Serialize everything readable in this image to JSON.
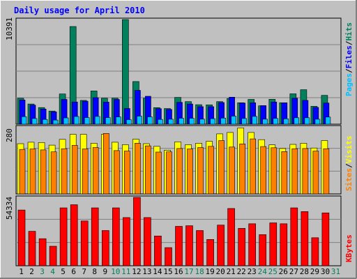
{
  "chart_data": [
    {
      "type": "bar",
      "title": "Daily usage for April 2010",
      "ylabel_max": "10391",
      "ylim": [
        0,
        10391
      ],
      "categories": [
        "1",
        "2",
        "3",
        "4",
        "5",
        "6",
        "7",
        "8",
        "9",
        "10",
        "11",
        "12",
        "13",
        "14",
        "15",
        "16",
        "17",
        "18",
        "19",
        "20",
        "21",
        "22",
        "23",
        "24",
        "25",
        "26",
        "27",
        "28",
        "29",
        "30",
        "31"
      ],
      "legend": [
        "Pages",
        "Files",
        "Hits"
      ],
      "series": [
        {
          "name": "Hits",
          "values": [
            2570,
            2000,
            1650,
            1300,
            3000,
            9700,
            2360,
            3300,
            2580,
            2580,
            10391,
            4230,
            2580,
            1640,
            1550,
            2660,
            2240,
            1930,
            1920,
            2240,
            2550,
            2130,
            2460,
            1820,
            2470,
            2130,
            3010,
            3420,
            1770,
            2860,
            0
          ]
        },
        {
          "name": "Files",
          "values": [
            2400,
            1890,
            1500,
            1220,
            2460,
            2200,
            2280,
            2630,
            2190,
            2450,
            1560,
            3360,
            2770,
            1540,
            1460,
            2170,
            2000,
            1740,
            1740,
            2150,
            2680,
            2100,
            2130,
            1840,
            2200,
            2130,
            2580,
            2360,
            1660,
            2100,
            0
          ]
        },
        {
          "name": "Pages",
          "values": [
            750,
            560,
            470,
            410,
            620,
            760,
            650,
            770,
            650,
            720,
            450,
            800,
            730,
            470,
            490,
            590,
            580,
            500,
            550,
            600,
            800,
            560,
            770,
            500,
            570,
            530,
            640,
            640,
            490,
            710,
            0
          ]
        }
      ],
      "colors": {
        "Hits": "#00805c",
        "Files": "#0000ff",
        "Pages": "#00c0ff"
      }
    },
    {
      "type": "bar",
      "ylabel_max": "280",
      "ylim": [
        0,
        280
      ],
      "categories": [
        "1",
        "2",
        "3",
        "4",
        "5",
        "6",
        "7",
        "8",
        "9",
        "10",
        "11",
        "12",
        "13",
        "14",
        "15",
        "16",
        "17",
        "18",
        "19",
        "20",
        "21",
        "22",
        "23",
        "24",
        "25",
        "26",
        "27",
        "28",
        "29",
        "30",
        "31"
      ],
      "legend": [
        "Sites",
        "Visits"
      ],
      "series": [
        {
          "name": "Visits",
          "values": [
            210,
            216,
            215,
            204,
            228,
            249,
            249,
            212,
            249,
            216,
            206,
            229,
            210,
            199,
            183,
            218,
            206,
            212,
            220,
            251,
            257,
            276,
            257,
            227,
            205,
            190,
            207,
            212,
            192,
            223,
            0
          ]
        },
        {
          "name": "Sites",
          "values": [
            186,
            188,
            184,
            176,
            189,
            203,
            188,
            194,
            253,
            181,
            179,
            212,
            201,
            175,
            176,
            190,
            188,
            194,
            199,
            223,
            196,
            209,
            230,
            198,
            193,
            177,
            189,
            190,
            179,
            189,
            0
          ]
        }
      ],
      "colors": {
        "Visits": "#ffff00",
        "Sites": "#ff8000"
      }
    },
    {
      "type": "bar",
      "ylabel_max": "54334",
      "ylim": [
        0,
        54334
      ],
      "categories": [
        "1",
        "2",
        "3",
        "4",
        "5",
        "6",
        "7",
        "8",
        "9",
        "10",
        "11",
        "12",
        "13",
        "14",
        "15",
        "16",
        "17",
        "18",
        "19",
        "20",
        "21",
        "22",
        "23",
        "24",
        "25",
        "26",
        "27",
        "28",
        "29",
        "30",
        "31"
      ],
      "legend": [
        "KBytes"
      ],
      "series": [
        {
          "name": "KBytes",
          "values": [
            44300,
            27400,
            21500,
            15500,
            46000,
            48500,
            35600,
            46000,
            28000,
            46000,
            38300,
            54334,
            38300,
            23700,
            14400,
            31300,
            31800,
            28000,
            20900,
            32300,
            45500,
            29700,
            33400,
            24700,
            34100,
            33400,
            46000,
            43100,
            22300,
            42000,
            0
          ]
        }
      ],
      "colors": {
        "KBytes": "#ff0000"
      }
    }
  ],
  "colors": {
    "title": "#0000ff",
    "panel_bg": "#c0c0c0",
    "frame_bg": "#c0c0c0",
    "weekend_label": "#00805c",
    "weekday_label": "#000000"
  },
  "weekend_days": [
    "3",
    "4",
    "10",
    "11",
    "17",
    "18",
    "24",
    "25",
    "31"
  ]
}
